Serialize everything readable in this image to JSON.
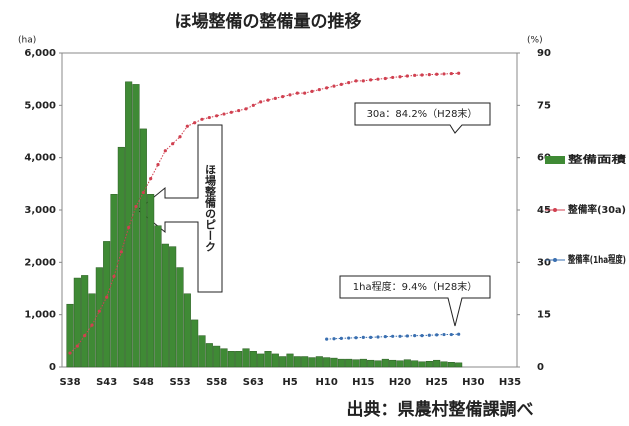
{
  "chart_data": {
    "type": "bar",
    "title": "ほ場整備の整備量の推移",
    "y_unit": "(ha)",
    "y2_unit": "(%)",
    "source": "出典：県農村整備課調べ",
    "categories": [
      "S38",
      null,
      null,
      null,
      null,
      "S43",
      null,
      null,
      null,
      null,
      "S48",
      null,
      null,
      null,
      null,
      "S53",
      null,
      null,
      null,
      null,
      "S58",
      null,
      null,
      null,
      null,
      "S63",
      null,
      null,
      null,
      null,
      "H5",
      null,
      null,
      null,
      null,
      "H10",
      null,
      null,
      null,
      null,
      "H15",
      null,
      null,
      null,
      null,
      "H20",
      null,
      null,
      null,
      null,
      "H25",
      null,
      null,
      null,
      null,
      "H30",
      null,
      null,
      null,
      null,
      "H35"
    ],
    "ylim": [
      0,
      6000
    ],
    "yticks": [
      0,
      {
        "value": 1000,
        "label": "1,000"
      },
      {
        "value": 2000,
        "label": "2,000"
      },
      {
        "value": 3000,
        "label": "3,000"
      },
      {
        "value": 4000,
        "label": "4,000"
      },
      {
        "value": 5000,
        "label": "5,000"
      },
      {
        "value": 6000,
        "label": "6,000"
      }
    ],
    "y2lim": [
      0,
      90
    ],
    "y2ticks": [
      0,
      15,
      30,
      45,
      60,
      75,
      90
    ],
    "series": [
      {
        "name": "整備面積",
        "type": "bar",
        "color": "#3f8a35",
        "values": [
          1200,
          1700,
          1750,
          1400,
          1900,
          2400,
          3300,
          4200,
          5450,
          5400,
          4550,
          3300,
          2700,
          2350,
          2300,
          1900,
          1400,
          900,
          600,
          450,
          400,
          350,
          300,
          300,
          350,
          300,
          250,
          300,
          250,
          200,
          250,
          200,
          200,
          180,
          200,
          180,
          170,
          150,
          150,
          140,
          150,
          130,
          120,
          150,
          130,
          120,
          140,
          120,
          100,
          110,
          130,
          100,
          90,
          80,
          null,
          null,
          null,
          null,
          null,
          null,
          null
        ]
      },
      {
        "name": "整備率(30a)",
        "type": "line",
        "axis": "y2",
        "color": "#d04050",
        "values": [
          4,
          6,
          9,
          12,
          16,
          20,
          26,
          33,
          40,
          46,
          50,
          54,
          58,
          62,
          64,
          66,
          69,
          70,
          71,
          71.5,
          72,
          72.5,
          73,
          73.5,
          74,
          75,
          76,
          76.5,
          77,
          77.5,
          78,
          78.5,
          78.5,
          79,
          79.5,
          80,
          80.5,
          81,
          81.5,
          82,
          82,
          82.3,
          82.5,
          82.7,
          83,
          83.2,
          83.4,
          83.6,
          83.7,
          83.8,
          83.9,
          84,
          84.1,
          84.2,
          null,
          null,
          null,
          null,
          null,
          null,
          null
        ]
      },
      {
        "name": "整備率(1ha程度)",
        "type": "line",
        "axis": "y2",
        "color": "#3a6fb0",
        "values": [
          null,
          null,
          null,
          null,
          null,
          null,
          null,
          null,
          null,
          null,
          null,
          null,
          null,
          null,
          null,
          null,
          null,
          null,
          null,
          null,
          null,
          null,
          null,
          null,
          null,
          null,
          null,
          null,
          null,
          null,
          null,
          null,
          null,
          null,
          null,
          8.0,
          8.1,
          8.2,
          8.3,
          8.4,
          8.5,
          8.5,
          8.6,
          8.7,
          8.8,
          8.8,
          8.9,
          9.0,
          9.0,
          9.1,
          9.2,
          9.3,
          9.3,
          9.4,
          null,
          null,
          null,
          null,
          null,
          null,
          null
        ]
      }
    ],
    "annotations": [
      "30a：84.2%（H28末）",
      "1ha程度：9.4%（H28末）",
      "ほ場整備のピーク"
    ]
  }
}
